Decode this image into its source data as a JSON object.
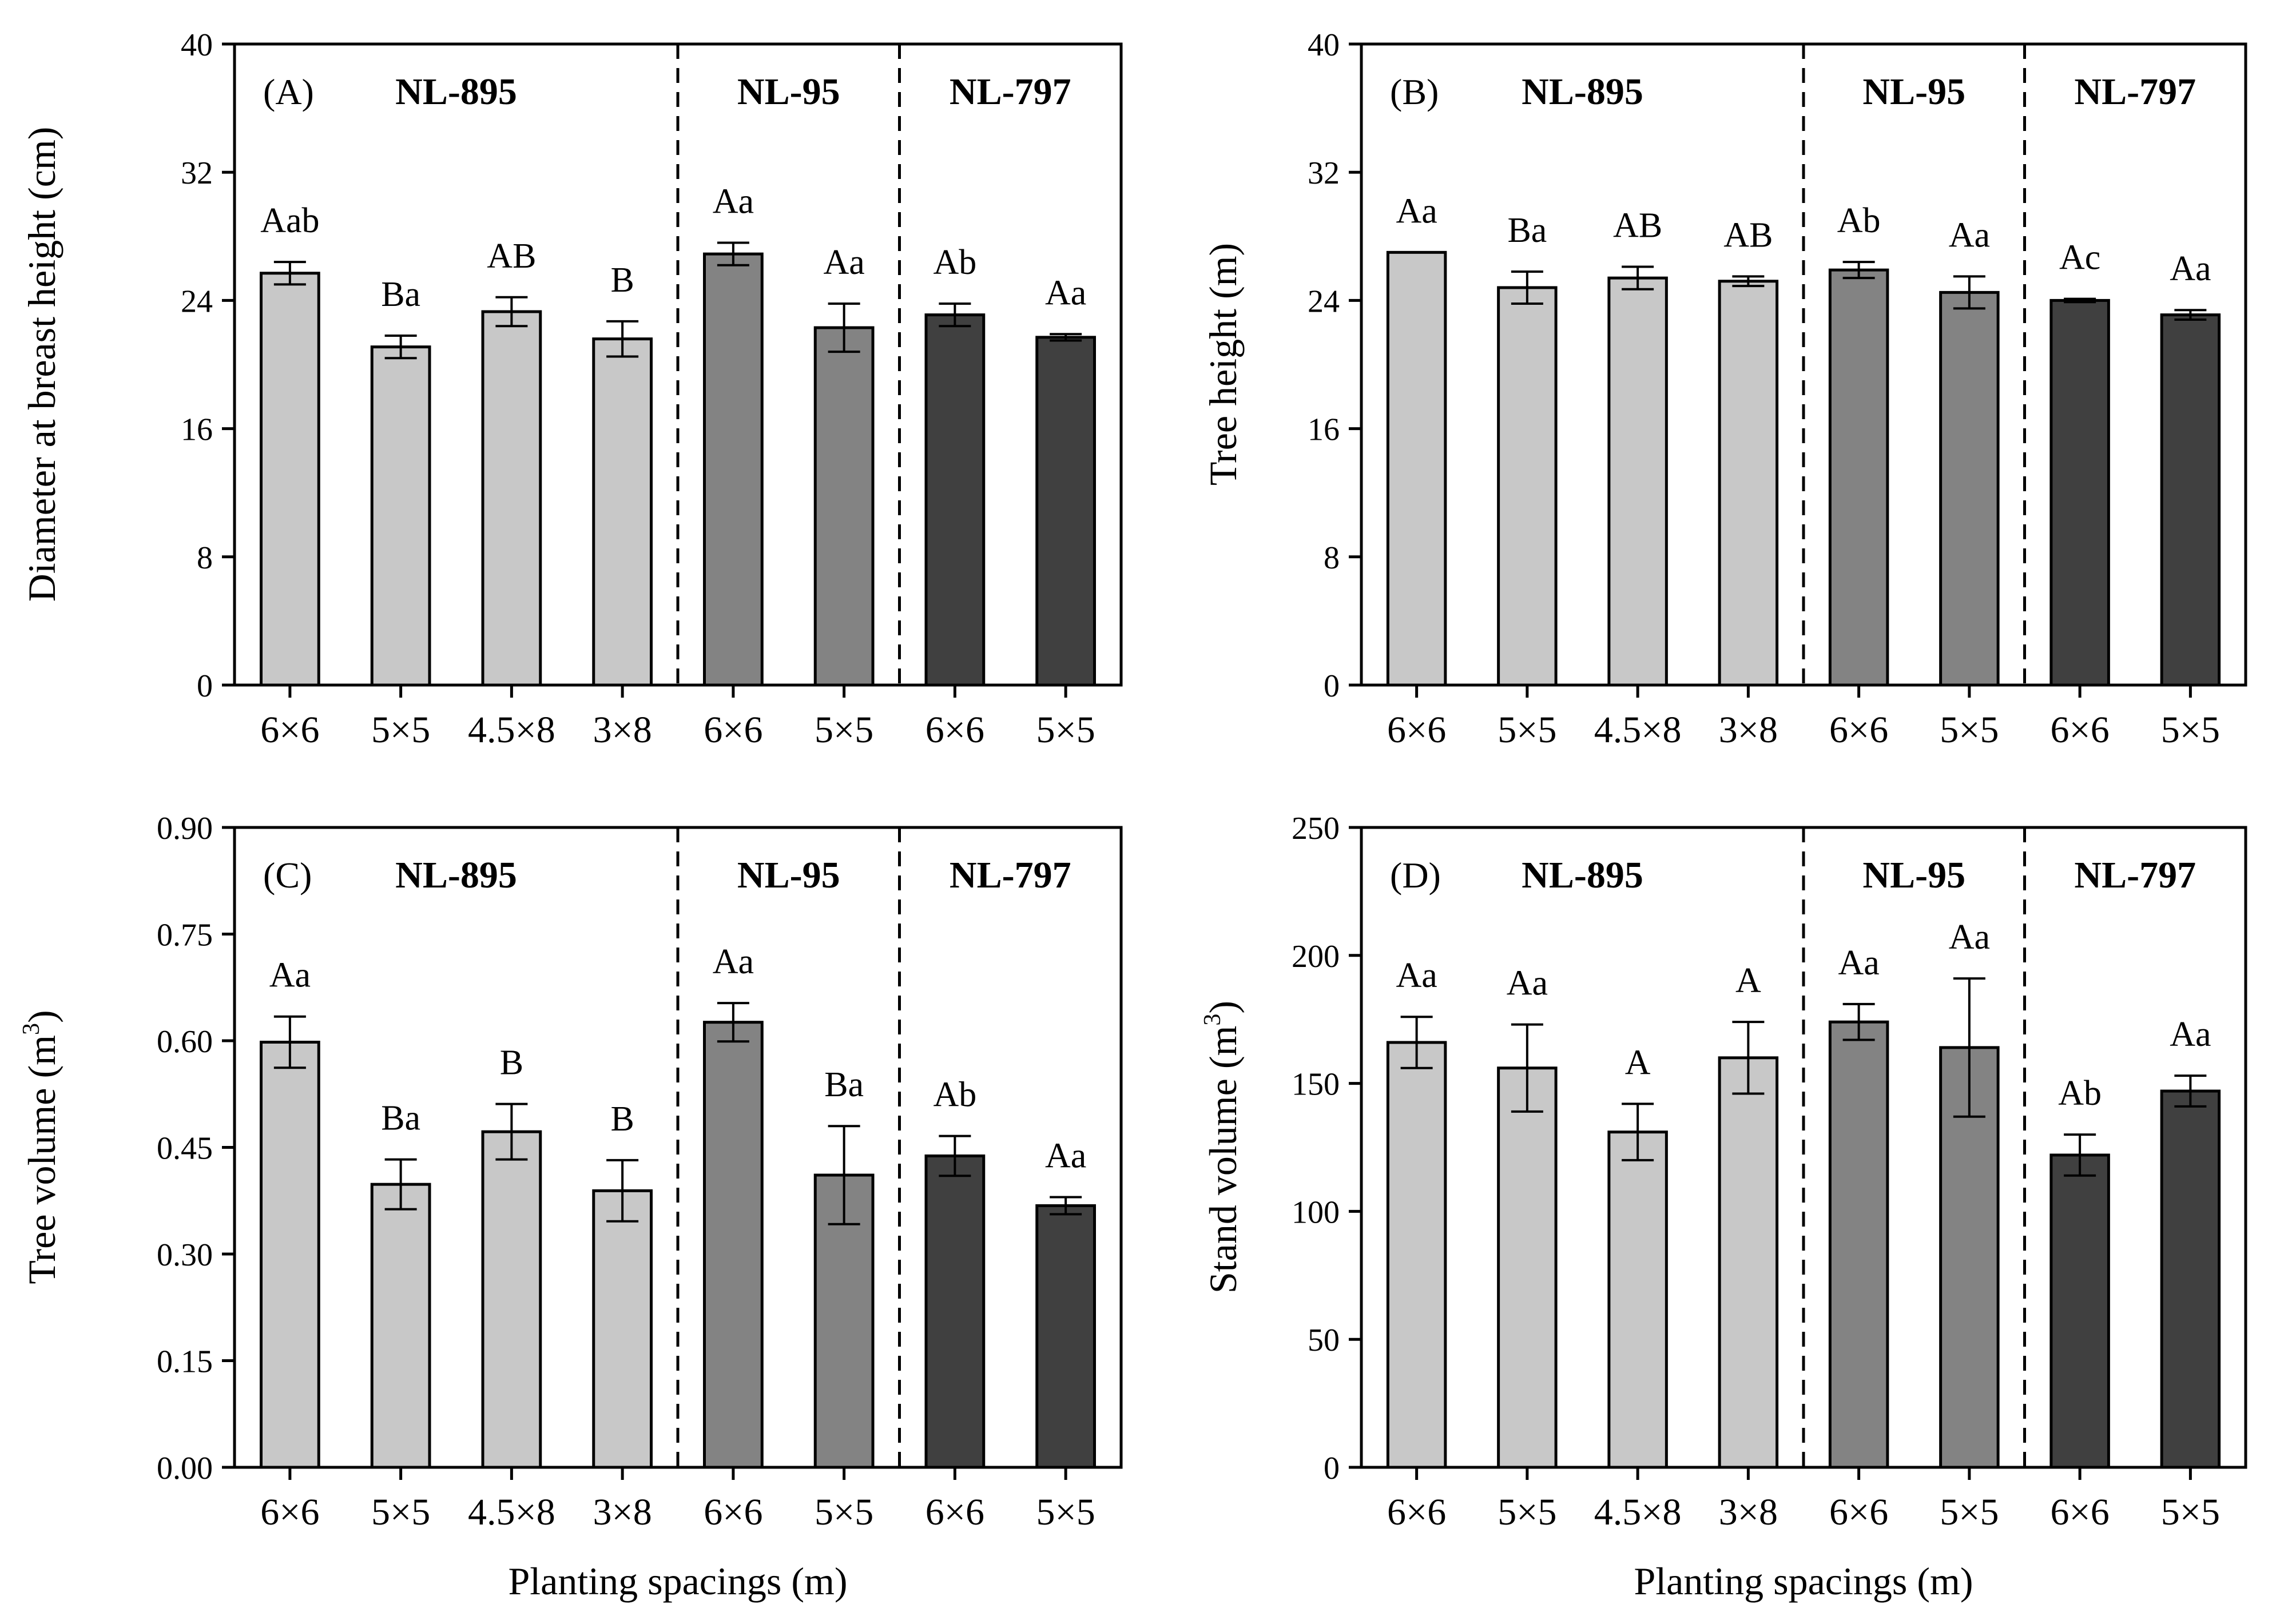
{
  "chart_data": [
    {
      "type": "bar",
      "panel": "(A)",
      "ylabel": "Diameter at breast height (cm)",
      "xlabel": "",
      "ylim": [
        0,
        40
      ],
      "yticks": [
        "0",
        "8",
        "16",
        "24",
        "32",
        "40"
      ],
      "categories": [
        "6×6",
        "5×5",
        "4.5×8",
        "3×8",
        "6×6",
        "5×5",
        "6×6",
        "5×5"
      ],
      "groups": [
        {
          "name": "NL-895",
          "count": 4,
          "color": "#c8c8c8"
        },
        {
          "name": "NL-95",
          "count": 2,
          "color": "#838383"
        },
        {
          "name": "NL-797",
          "count": 2,
          "color": "#404040"
        }
      ],
      "values": [
        25.7,
        21.1,
        23.3,
        21.6,
        26.9,
        22.3,
        23.1,
        21.7
      ],
      "errors": [
        0.7,
        0.7,
        0.9,
        1.1,
        0.7,
        1.5,
        0.7,
        0.2
      ],
      "labels": [
        "Aab",
        "Ba",
        "AB",
        "B",
        "Aa",
        "Aa",
        "Ab",
        "Aa"
      ]
    },
    {
      "type": "bar",
      "panel": "(B)",
      "ylabel": "Tree height (m)",
      "xlabel": "",
      "ylim": [
        0,
        40
      ],
      "yticks": [
        "0",
        "8",
        "16",
        "24",
        "32",
        "40"
      ],
      "categories": [
        "6×6",
        "5×5",
        "4.5×8",
        "3×8",
        "6×6",
        "5×5",
        "6×6",
        "5×5"
      ],
      "groups": [
        {
          "name": "NL-895",
          "count": 4,
          "color": "#c8c8c8"
        },
        {
          "name": "NL-95",
          "count": 2,
          "color": "#838383"
        },
        {
          "name": "NL-797",
          "count": 2,
          "color": "#404040"
        }
      ],
      "values": [
        27.0,
        24.8,
        25.4,
        25.2,
        25.9,
        24.5,
        24.0,
        23.1
      ],
      "errors": [
        0.0,
        1.0,
        0.7,
        0.3,
        0.5,
        1.0,
        0.1,
        0.3
      ],
      "labels": [
        "Aa",
        "Ba",
        "AB",
        "AB",
        "Ab",
        "Aa",
        "Ac",
        "Aa"
      ]
    },
    {
      "type": "bar",
      "panel": "(C)",
      "ylabel": "Tree volume (m³)",
      "xlabel": "Planting spacings (m)",
      "ylim": [
        0,
        0.9
      ],
      "yticks": [
        "0.00",
        "0.15",
        "0.30",
        "0.45",
        "0.60",
        "0.75",
        "0.90"
      ],
      "categories": [
        "6×6",
        "5×5",
        "4.5×8",
        "3×8",
        "6×6",
        "5×5",
        "6×6",
        "5×5"
      ],
      "groups": [
        {
          "name": "NL-895",
          "count": 4,
          "color": "#c8c8c8"
        },
        {
          "name": "NL-95",
          "count": 2,
          "color": "#838383"
        },
        {
          "name": "NL-797",
          "count": 2,
          "color": "#404040"
        }
      ],
      "values": [
        0.598,
        0.398,
        0.472,
        0.389,
        0.626,
        0.411,
        0.438,
        0.368
      ],
      "errors": [
        0.036,
        0.035,
        0.039,
        0.043,
        0.027,
        0.069,
        0.028,
        0.012
      ],
      "labels": [
        "Aa",
        "Ba",
        "B",
        "B",
        "Aa",
        "Ba",
        "Ab",
        "Aa"
      ]
    },
    {
      "type": "bar",
      "panel": "(D)",
      "ylabel": "Stand volume (m³)",
      "xlabel": "Planting spacings (m)",
      "ylim": [
        0,
        250
      ],
      "yticks": [
        "0",
        "50",
        "100",
        "150",
        "200",
        "250"
      ],
      "categories": [
        "6×6",
        "5×5",
        "4.5×8",
        "3×8",
        "6×6",
        "5×5",
        "6×6",
        "5×5"
      ],
      "groups": [
        {
          "name": "NL-895",
          "count": 4,
          "color": "#c8c8c8"
        },
        {
          "name": "NL-95",
          "count": 2,
          "color": "#838383"
        },
        {
          "name": "NL-797",
          "count": 2,
          "color": "#404040"
        }
      ],
      "values": [
        166,
        156,
        131,
        160,
        174,
        164,
        122,
        147
      ],
      "errors": [
        10,
        17,
        11,
        14,
        7,
        27,
        8,
        6
      ],
      "labels": [
        "Aa",
        "Aa",
        "A",
        "A",
        "Aa",
        "Aa",
        "Ab",
        "Aa"
      ]
    }
  ]
}
